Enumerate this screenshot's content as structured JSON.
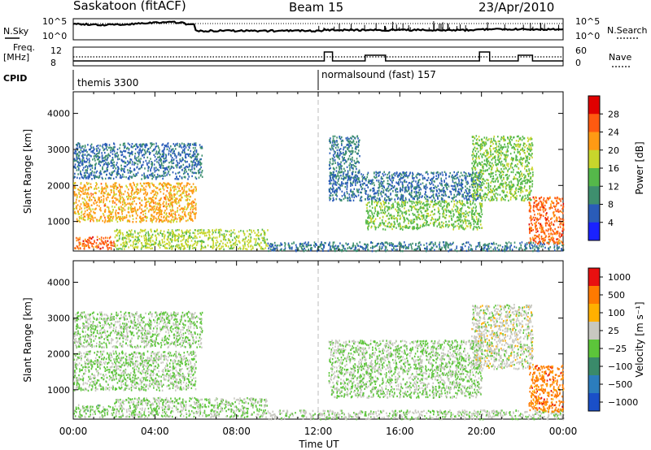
{
  "header": {
    "station": "Saskatoon (fitACF)",
    "beam": "Beam 15",
    "date": "23/Apr/2010"
  },
  "aux_labels": {
    "nsky": "N.Sky",
    "nsky_ticks": [
      "10^5",
      "10^0"
    ],
    "nsearch": "N.Search",
    "nsearch_ticks": [
      "10^5",
      "10^0"
    ],
    "freq_line1": "Freq.",
    "freq_line2": "[MHz]",
    "freq_ticks": [
      "12",
      "8"
    ],
    "nave": "Nave",
    "nave_ticks": [
      "60",
      "0"
    ],
    "cpid": "CPID"
  },
  "cpid_segments": [
    {
      "label": "themis 3300",
      "start_hour": 0
    },
    {
      "label": "normalsound (fast) 157",
      "start_hour": 12
    }
  ],
  "chart_data": [
    {
      "type": "heatmap",
      "name": "power-panel",
      "xlabel": "Time UT",
      "ylabel": "Slant Range [km]",
      "x_range_hours": [
        0,
        24
      ],
      "x_ticks": [
        "00:00",
        "04:00",
        "08:00",
        "12:00",
        "16:00",
        "20:00",
        "00:00"
      ],
      "ylim": [
        180,
        4600
      ],
      "y_ticks": [
        1000,
        2000,
        3000,
        4000
      ],
      "colorbar_label": "Power [dB]",
      "colorbar_ticks": [
        "4",
        "8",
        "12",
        "16",
        "20",
        "24",
        "28"
      ],
      "colorbar_colors": [
        "#1a22ff",
        "#2a5cb8",
        "#3e8f6e",
        "#55b84a",
        "#c8d62c",
        "#ff9a14",
        "#ff5a10",
        "#e00000"
      ],
      "value_range": [
        0,
        30
      ],
      "regions": [
        {
          "t0": 0.0,
          "t1": 6.0,
          "r0": 1000,
          "r1": 2100,
          "value": 20
        },
        {
          "t0": 0.0,
          "t1": 6.3,
          "r0": 2200,
          "r1": 3200,
          "value": 7
        },
        {
          "t0": 0.0,
          "t1": 2.0,
          "r0": 250,
          "r1": 600,
          "value": 24
        },
        {
          "t0": 2.0,
          "t1": 9.5,
          "r0": 250,
          "r1": 800,
          "value": 16
        },
        {
          "t0": 9.5,
          "t1": 24.0,
          "r0": 200,
          "r1": 450,
          "value": 8
        },
        {
          "t0": 12.5,
          "t1": 20.0,
          "r0": 1600,
          "r1": 2400,
          "value": 7
        },
        {
          "t0": 14.3,
          "t1": 20.0,
          "r0": 800,
          "r1": 1600,
          "value": 14
        },
        {
          "t0": 12.5,
          "t1": 14.0,
          "r0": 2200,
          "r1": 3400,
          "value": 8
        },
        {
          "t0": 19.5,
          "t1": 22.5,
          "r0": 1600,
          "r1": 3400,
          "value": 14
        },
        {
          "t0": 22.3,
          "t1": 24.0,
          "r0": 400,
          "r1": 1700,
          "value": 24
        }
      ]
    },
    {
      "type": "heatmap",
      "name": "velocity-panel",
      "xlabel": "Time UT",
      "ylabel": "Slant Range [km]",
      "x_range_hours": [
        0,
        24
      ],
      "x_ticks": [
        "00:00",
        "04:00",
        "08:00",
        "12:00",
        "16:00",
        "20:00",
        "00:00"
      ],
      "ylim": [
        180,
        4600
      ],
      "y_ticks": [
        1000,
        2000,
        3000,
        4000
      ],
      "colorbar_label": "Velocity [m s⁻¹]",
      "colorbar_ticks": [
        "1000",
        "500",
        "100",
        "25",
        "−25",
        "−100",
        "−500",
        "−1000"
      ],
      "colorbar_colors": [
        "#1a4fc8",
        "#2c7dbd",
        "#3a8a6a",
        "#5cc53a",
        "#c8c8c0",
        "#ffb000",
        "#ff7a00",
        "#e81010"
      ],
      "value_range": [
        -1000,
        1000
      ],
      "regions": [
        {
          "t0": 0.0,
          "t1": 6.0,
          "r0": 1000,
          "r1": 2100,
          "value": 0
        },
        {
          "t0": 0.0,
          "t1": 6.3,
          "r0": 2200,
          "r1": 3200,
          "value": 0
        },
        {
          "t0": 0.0,
          "t1": 2.0,
          "r0": 250,
          "r1": 600,
          "value": -80
        },
        {
          "t0": 2.0,
          "t1": 9.5,
          "r0": 250,
          "r1": 800,
          "value": 10
        },
        {
          "t0": 9.5,
          "t1": 24.0,
          "r0": 200,
          "r1": 450,
          "value": 60
        },
        {
          "t0": 12.5,
          "t1": 20.0,
          "r0": 800,
          "r1": 2400,
          "value": 0
        },
        {
          "t0": 19.5,
          "t1": 22.5,
          "r0": 1600,
          "r1": 3400,
          "value": 120
        },
        {
          "t0": 22.3,
          "t1": 24.0,
          "r0": 400,
          "r1": 1700,
          "value": 600
        }
      ]
    }
  ]
}
